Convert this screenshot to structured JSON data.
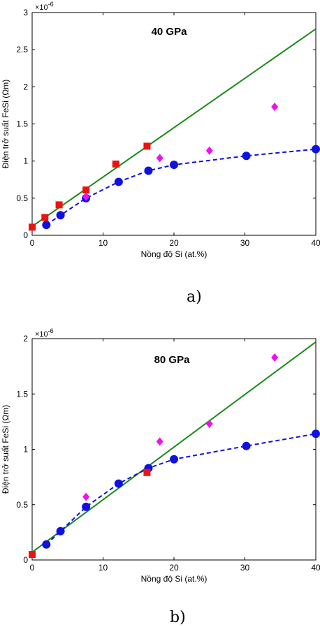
{
  "chart_data": [
    {
      "type": "scatter",
      "panel_label": "a)",
      "annotation": "40 GPa",
      "xlabel": "Nồng độ Si (at.%)",
      "ylabel": "Điện trở suất FeSi (Ωm)",
      "y_exponent": "×10",
      "y_exponent_power": "-6",
      "xlim": [
        0,
        40
      ],
      "ylim": [
        0,
        3
      ],
      "xticks": [
        0,
        10,
        20,
        30,
        40
      ],
      "yticks": [
        0,
        0.5,
        1,
        1.5,
        2,
        2.5,
        3
      ],
      "xtick_labels": [
        "0",
        "10",
        "20",
        "30",
        "40"
      ],
      "ytick_labels": [
        "0",
        "0.5",
        "1",
        "1.5",
        "2",
        "2.5",
        "3"
      ],
      "grid": false,
      "series": [
        {
          "kind": "line",
          "color": "#1a8a1a",
          "x": [
            0,
            40
          ],
          "y": [
            0.12,
            2.78
          ]
        },
        {
          "kind": "dashed-line-circles",
          "color": "#1010e0",
          "x": [
            2,
            4,
            7.6,
            12.2,
            16.4,
            20,
            30.2,
            40
          ],
          "y": [
            0.14,
            0.27,
            0.5,
            0.72,
            0.87,
            0.95,
            1.07,
            1.16
          ]
        },
        {
          "kind": "squares",
          "color": "#ee1111",
          "x": [
            0,
            1.8,
            3.8,
            7.6,
            11.8,
            16.2
          ],
          "y": [
            0.11,
            0.24,
            0.41,
            0.61,
            0.96,
            1.2
          ]
        },
        {
          "kind": "diamonds",
          "color": "#ee11ee",
          "x": [
            7.6,
            18,
            25,
            34.2
          ],
          "y": [
            0.52,
            1.04,
            1.14,
            1.73
          ]
        }
      ]
    },
    {
      "type": "scatter",
      "panel_label": "b)",
      "annotation": "80 GPa",
      "xlabel": "Nồng độ Si (at.%)",
      "ylabel": "Điện trở suất FeSi (Ωm)",
      "y_exponent": "×10",
      "y_exponent_power": "-6",
      "xlim": [
        0,
        40
      ],
      "ylim": [
        0,
        2
      ],
      "xticks": [
        0,
        10,
        20,
        30,
        40
      ],
      "yticks": [
        0,
        0.5,
        1,
        1.5,
        2
      ],
      "xtick_labels": [
        "0",
        "10",
        "20",
        "30",
        "40"
      ],
      "ytick_labels": [
        "0",
        "0.5",
        "1",
        "1.5",
        "2"
      ],
      "grid": false,
      "series": [
        {
          "kind": "line",
          "color": "#1a8a1a",
          "x": [
            0,
            40
          ],
          "y": [
            0.07,
            1.97
          ]
        },
        {
          "kind": "dashed-line-circles",
          "color": "#1010e0",
          "x": [
            2,
            4,
            7.6,
            12.2,
            16.4,
            20,
            30.2,
            40
          ],
          "y": [
            0.14,
            0.26,
            0.48,
            0.69,
            0.83,
            0.91,
            1.03,
            1.14
          ]
        },
        {
          "kind": "squares",
          "color": "#ee1111",
          "x": [
            0,
            16.2
          ],
          "y": [
            0.05,
            0.79
          ]
        },
        {
          "kind": "diamonds",
          "color": "#ee11ee",
          "x": [
            7.6,
            18,
            25,
            34.2
          ],
          "y": [
            0.57,
            1.07,
            1.23,
            1.83
          ]
        }
      ]
    }
  ]
}
